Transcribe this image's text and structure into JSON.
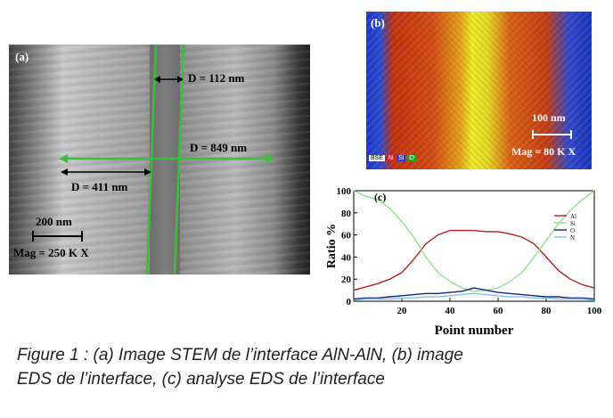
{
  "panel_a": {
    "letter": "(a)",
    "d_112": "D = 112 nm",
    "d_849": "D = 849 nm",
    "d_411": "D = 411 nm",
    "scale": "200 nm",
    "mag": "Mag = 250 K X",
    "line_color": "#3dbd3d"
  },
  "panel_b": {
    "letter": "(b)",
    "scale": "100 nm",
    "mag": "Mag = 80 K X",
    "legend": [
      "BSE",
      "N",
      "Si",
      "O"
    ]
  },
  "caption": {
    "line1": "Figure 1 : (a) Image STEM de l’interface AlN-AlN, (b) image",
    "line2": "EDS de l’interface, (c) analyse EDS de l’interface"
  },
  "chart_data": {
    "type": "line",
    "letter": "(c)",
    "xlabel": "Point number",
    "ylabel": "Ratio %",
    "xlim": [
      0,
      100
    ],
    "ylim": [
      0,
      100
    ],
    "xticks": [
      "20",
      "40",
      "60",
      "80",
      "100"
    ],
    "yticks": [
      "0",
      "20",
      "40",
      "60",
      "80",
      "100"
    ],
    "legend_position": "right",
    "x": [
      0,
      5,
      10,
      15,
      20,
      25,
      30,
      35,
      40,
      45,
      50,
      55,
      60,
      65,
      70,
      75,
      80,
      85,
      90,
      95,
      100
    ],
    "series": [
      {
        "name": "Al",
        "color": "#b22222",
        "values": [
          10,
          13,
          16,
          20,
          26,
          38,
          52,
          60,
          64,
          64,
          64,
          63,
          63,
          61,
          58,
          52,
          40,
          28,
          20,
          15,
          12
        ]
      },
      {
        "name": "Si",
        "color": "#90e090",
        "values": [
          100,
          95,
          92,
          84,
          72,
          58,
          40,
          26,
          18,
          12,
          9,
          10,
          12,
          18,
          26,
          40,
          55,
          70,
          82,
          92,
          100
        ]
      },
      {
        "name": "O",
        "color": "#1a237e",
        "values": [
          2,
          3,
          3,
          4,
          5,
          6,
          7,
          7,
          8,
          9,
          12,
          10,
          8,
          7,
          6,
          5,
          4,
          4,
          3,
          3,
          2
        ]
      },
      {
        "name": "N",
        "color": "#7ec8e3",
        "values": [
          1,
          2,
          2,
          2,
          3,
          3,
          4,
          4,
          5,
          6,
          7,
          6,
          5,
          4,
          4,
          3,
          3,
          2,
          2,
          2,
          1
        ]
      }
    ]
  }
}
